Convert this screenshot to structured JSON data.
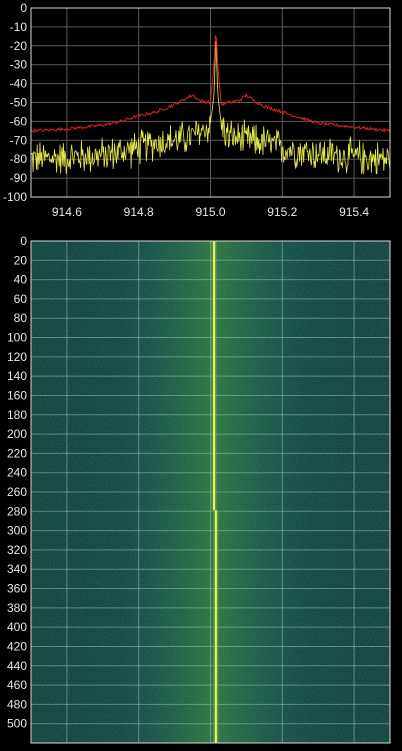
{
  "chart_data": [
    {
      "type": "line",
      "title": "",
      "xlabel": "",
      "ylabel": "",
      "xlim": [
        914.5,
        915.5
      ],
      "ylim": [
        -100,
        0
      ],
      "x_ticks": [
        "914.6",
        "914.8",
        "915.0",
        "915.2",
        "915.4"
      ],
      "y_ticks": [
        "0",
        "-10",
        "-20",
        "-30",
        "-40",
        "-50",
        "-60",
        "-70",
        "-80",
        "-90",
        "-100"
      ],
      "grid": true,
      "series": [
        {
          "color": "#e02020",
          "x": [
            914.5,
            914.6,
            914.7,
            914.75,
            914.8,
            914.85,
            914.9,
            914.92,
            914.95,
            914.97,
            915.0,
            915.01,
            915.015,
            915.02,
            915.03,
            915.05,
            915.08,
            915.1,
            915.12,
            915.15,
            915.2,
            915.25,
            915.3,
            915.4,
            915.5
          ],
          "values": [
            -65,
            -64,
            -62,
            -60,
            -57,
            -55,
            -51,
            -49,
            -46,
            -49,
            -50,
            -30,
            -10,
            -30,
            -51,
            -50,
            -49,
            -46,
            -49,
            -52,
            -55,
            -58,
            -61,
            -63,
            -65
          ]
        },
        {
          "color": "#e8e84a",
          "x": [
            914.5,
            914.6,
            914.7,
            914.8,
            914.85,
            914.9,
            914.95,
            915.0,
            915.01,
            915.015,
            915.02,
            915.03,
            915.05,
            915.1,
            915.15,
            915.2,
            915.3,
            915.4,
            915.5
          ],
          "values": [
            -80,
            -79,
            -78,
            -74,
            -71,
            -70,
            -68,
            -62,
            -45,
            -15,
            -45,
            -62,
            -68,
            -70,
            -71,
            -74,
            -77,
            -79,
            -80
          ]
        }
      ]
    },
    {
      "type": "heatmap",
      "title": "",
      "xlabel": "",
      "ylabel": "",
      "xlim": [
        914.5,
        915.5
      ],
      "ylim": [
        0,
        520
      ],
      "y_ticks": [
        "0",
        "20",
        "40",
        "60",
        "80",
        "100",
        "120",
        "140",
        "160",
        "180",
        "200",
        "220",
        "240",
        "260",
        "280",
        "300",
        "320",
        "340",
        "360",
        "380",
        "400",
        "420",
        "440",
        "460",
        "480",
        "500"
      ],
      "grid": true,
      "colormap": [
        "#0f3a3a",
        "#1d5f52",
        "#4da83a",
        "#f0f060"
      ],
      "signal": [
        {
          "y_start": 0,
          "y_end": 279,
          "x": 915.01
        },
        {
          "y_start": 279,
          "y_end": 520,
          "x": 915.015
        }
      ]
    }
  ]
}
